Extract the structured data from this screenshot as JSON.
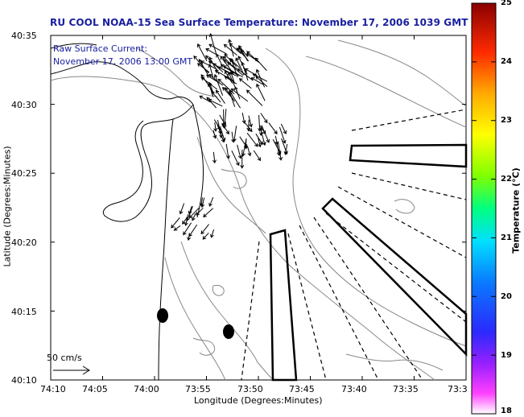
{
  "title": "RU COOL  NOAA-15  Sea Surface Temperature:  November 17, 2006 1039 GMT",
  "current_label_1": "Raw Surface Current:",
  "current_label_2": "November 17, 2006 13:00 GMT",
  "scale_label": "50 cm/s",
  "xlabel": "Longitude (Degrees:Minutes)",
  "ylabel": "Latitude (Degrees:Minutes)",
  "x_ticks": [
    "74:10",
    "74:05",
    "74:00",
    "73:55",
    "73:50",
    "73:45",
    "73:40",
    "73:35",
    "73:3"
  ],
  "y_ticks": [
    "40:35",
    "40:30",
    "40:25",
    "40:20",
    "40:15",
    "40:10"
  ],
  "colorbar": {
    "label": "Temperature (°C)",
    "ticks": [
      "25",
      "24",
      "23",
      "22",
      "21",
      "20",
      "19",
      "18"
    ],
    "range": [
      18,
      25
    ]
  }
}
